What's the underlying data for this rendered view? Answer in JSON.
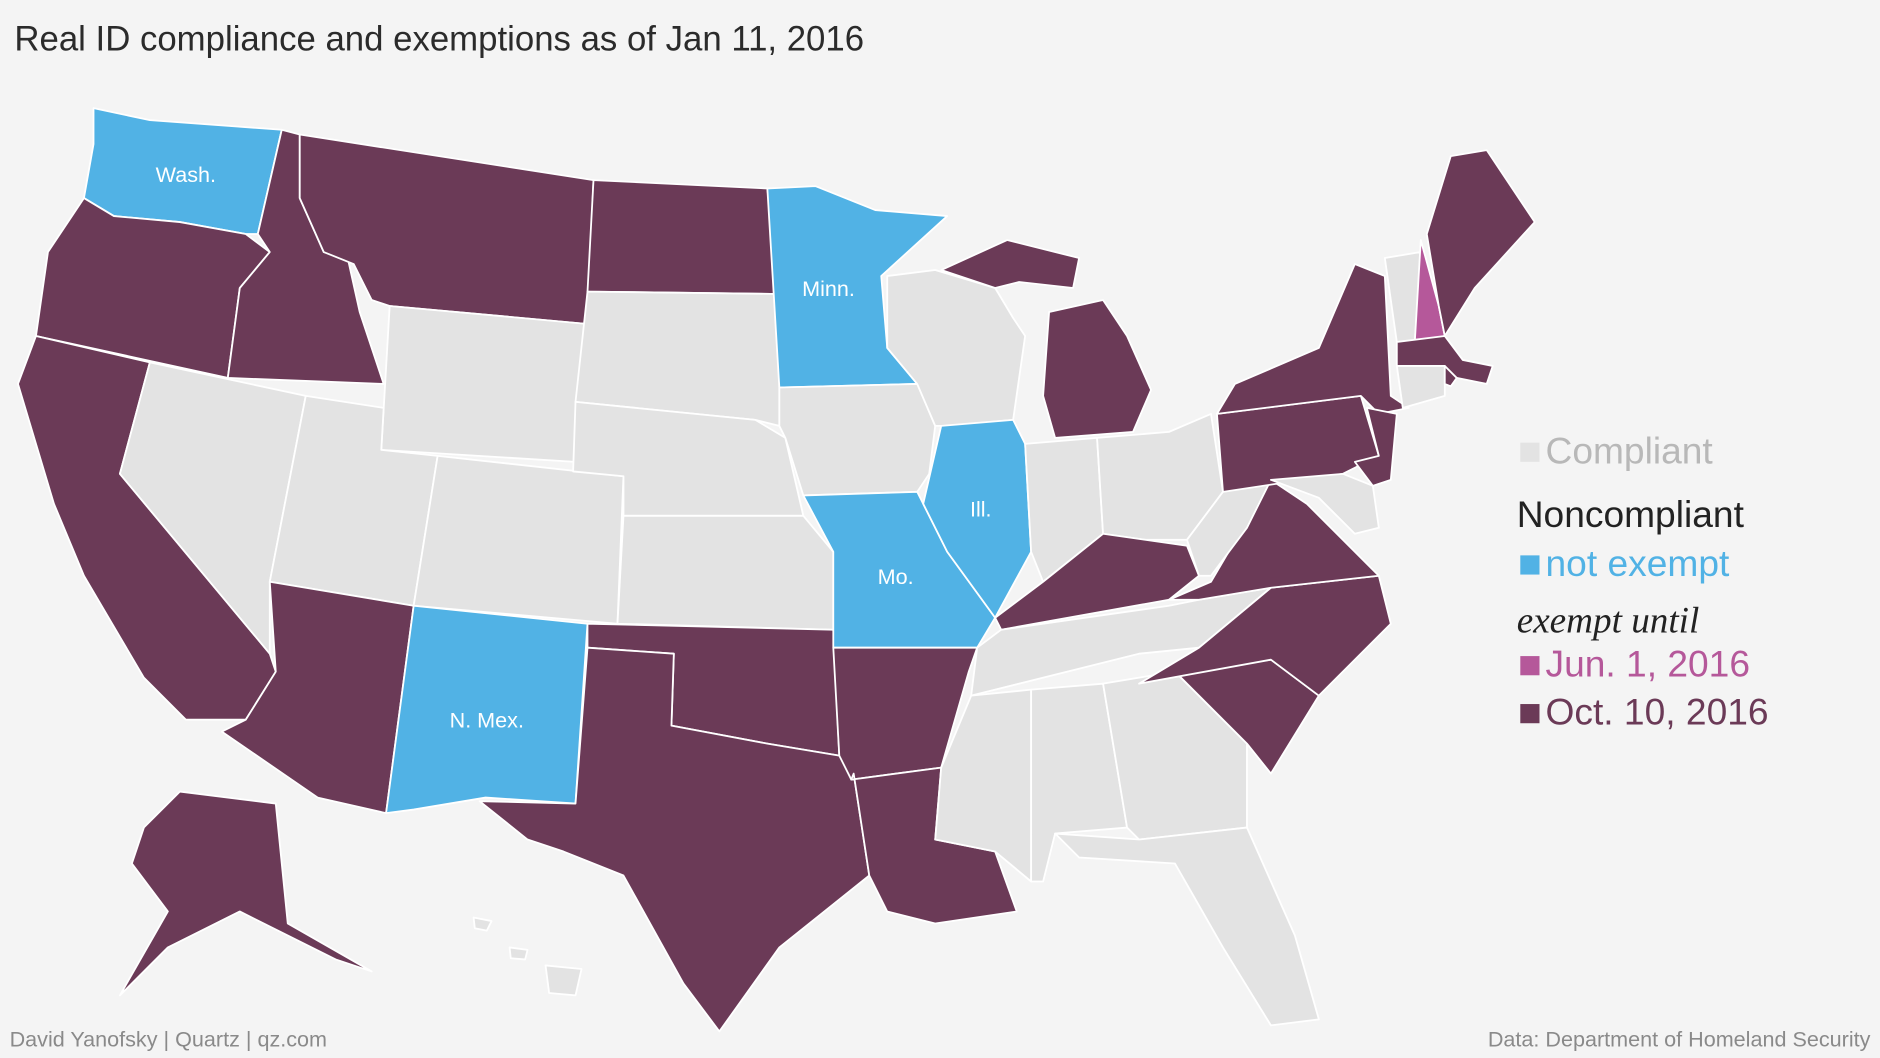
{
  "title": "Real ID compliance and exemptions as of Jan 11, 2016",
  "legend": {
    "items": [
      {
        "label": "Compliant",
        "color": "#e3e3e3"
      },
      {
        "label": "not exempt",
        "color": "#51b2e5"
      },
      {
        "label": "Jun. 1, 2016",
        "color": "#b5589a"
      },
      {
        "label": "Oct. 10, 2016",
        "color": "#6b3a57"
      }
    ],
    "noncompliant": "Noncompliant",
    "exempt_until": "exempt until"
  },
  "state_labels": [
    "Wash.",
    "Minn.",
    "Ill.",
    "Mo.",
    "N. Mex."
  ],
  "credit": "David Yanofsky | Quartz | qz.com",
  "source": "Data: Department of Homeland Security"
}
